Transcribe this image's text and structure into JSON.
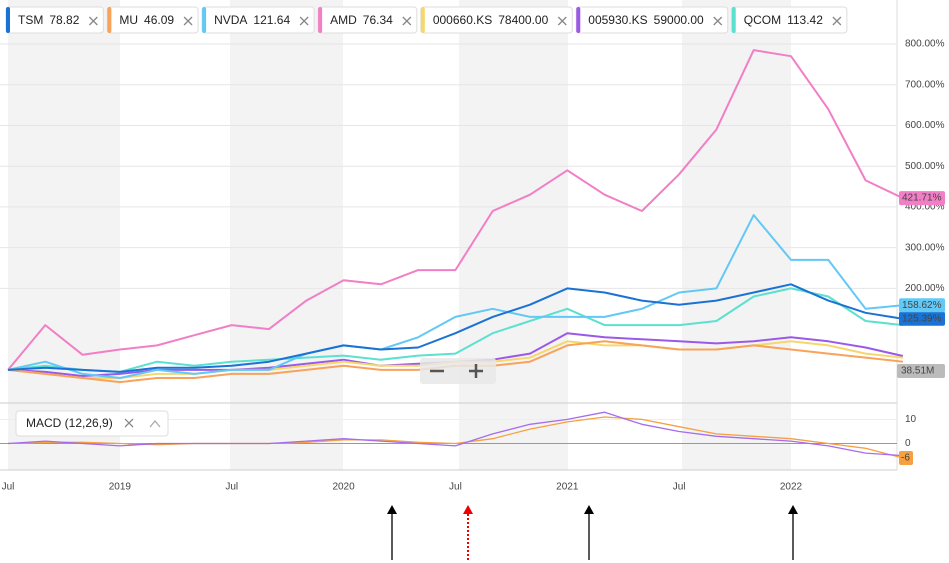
{
  "chart_data": [
    {
      "type": "line",
      "categories": [
        "Jul",
        null,
        null,
        "2019",
        null,
        null,
        "Jul",
        null,
        null,
        "2020",
        null,
        null,
        "Jul",
        null,
        null,
        "2021",
        null,
        null,
        "Jul",
        null,
        null,
        "2022",
        null,
        null,
        null
      ],
      "ylim": [
        -74,
        908
      ],
      "yticks": [
        {
          "value": 200,
          "label": "200.00%"
        },
        {
          "value": 300,
          "label": "300.00%"
        },
        {
          "value": 400,
          "label": "400.00%"
        },
        {
          "value": 500,
          "label": "500.00%"
        },
        {
          "value": 600,
          "label": "600.00%"
        },
        {
          "value": 700,
          "label": "700.00%"
        },
        {
          "value": 800,
          "label": "800.00%"
        }
      ],
      "grid": true,
      "volume": {
        "value": 38510000,
        "label": "38.51M"
      },
      "series": [
        {
          "name": "TSM",
          "price": "78.82",
          "color": "#1a73d4",
          "values": [
            0,
            5,
            0,
            -5,
            5,
            5,
            10,
            20,
            40,
            60,
            50,
            55,
            90,
            130,
            160,
            200,
            190,
            170,
            160,
            170,
            190,
            210,
            170,
            140,
            125.39
          ],
          "value_labels": [
            null,
            null,
            null,
            null,
            null,
            null,
            null,
            null,
            null,
            null,
            null,
            null,
            null,
            null,
            null,
            null,
            null,
            null,
            null,
            null,
            null,
            null,
            null,
            null,
            "125.39%"
          ]
        },
        {
          "name": "MU",
          "price": "46.09",
          "color": "#f7a35c",
          "values": [
            0,
            -10,
            -20,
            -30,
            -20,
            -20,
            -10,
            -10,
            0,
            10,
            0,
            0,
            10,
            10,
            20,
            60,
            70,
            60,
            50,
            50,
            60,
            50,
            40,
            30,
            20
          ]
        },
        {
          "name": "NVDA",
          "price": "121.64",
          "color": "#62c8f5",
          "values": [
            0,
            20,
            -10,
            -20,
            0,
            -10,
            0,
            0,
            40,
            60,
            50,
            80,
            130,
            150,
            130,
            130,
            130,
            150,
            190,
            200,
            380,
            270,
            270,
            150,
            158.62
          ],
          "value_labels": [
            null,
            null,
            null,
            null,
            null,
            null,
            null,
            null,
            null,
            null,
            null,
            null,
            null,
            null,
            null,
            null,
            null,
            null,
            null,
            null,
            null,
            null,
            null,
            null,
            "158.62%"
          ]
        },
        {
          "name": "AMD",
          "price": "76.34",
          "color": "#f27ec6",
          "values": [
            0,
            110,
            37,
            50,
            60,
            85,
            110,
            100,
            170,
            220,
            210,
            245,
            245,
            390,
            430,
            490,
            430,
            390,
            480,
            590,
            785,
            770,
            640,
            465,
            421.71
          ],
          "value_labels": [
            null,
            null,
            null,
            null,
            null,
            null,
            null,
            null,
            null,
            null,
            null,
            null,
            null,
            null,
            null,
            null,
            null,
            null,
            null,
            null,
            null,
            null,
            null,
            null,
            "421.71%"
          ]
        },
        {
          "name": "000660.KS",
          "price": "78400.00",
          "color": "#f5d76e",
          "values": [
            0,
            -10,
            -20,
            -20,
            -10,
            -10,
            0,
            0,
            10,
            20,
            10,
            10,
            20,
            20,
            30,
            70,
            60,
            60,
            50,
            50,
            60,
            70,
            60,
            40,
            30
          ]
        },
        {
          "name": "005930.KS",
          "price": "59000.00",
          "color": "#9b59e8",
          "values": [
            0,
            -5,
            -15,
            -10,
            0,
            0,
            0,
            5,
            15,
            25,
            10,
            15,
            20,
            25,
            40,
            90,
            80,
            75,
            70,
            65,
            70,
            80,
            70,
            55,
            34
          ]
        },
        {
          "name": "QCOM",
          "price": "113.42",
          "color": "#5ce0d0",
          "values": [
            0,
            10,
            0,
            -5,
            20,
            10,
            20,
            25,
            30,
            35,
            25,
            35,
            40,
            90,
            120,
            150,
            110,
            110,
            110,
            120,
            180,
            200,
            180,
            120,
            110
          ]
        }
      ]
    },
    {
      "type": "line",
      "title": "MACD (12,26,9)",
      "ylim": [
        -11,
        16
      ],
      "yticks": [
        10,
        0
      ],
      "series": [
        {
          "color": "#a66cf0",
          "values": [
            0,
            1,
            0,
            -1,
            0,
            0,
            0,
            0,
            1,
            2,
            1,
            0,
            -1,
            4,
            8,
            10,
            13,
            8,
            5,
            3,
            2,
            1,
            -1,
            -4,
            -5
          ]
        },
        {
          "color": "#f5a041",
          "values": [
            0,
            0.5,
            0.5,
            0,
            -0.5,
            0,
            0,
            0,
            0.5,
            1.5,
            1.5,
            0.5,
            0,
            2,
            6,
            9,
            11,
            10,
            7,
            4,
            3,
            2,
            0,
            -2,
            -6
          ]
        }
      ]
    }
  ]
}
